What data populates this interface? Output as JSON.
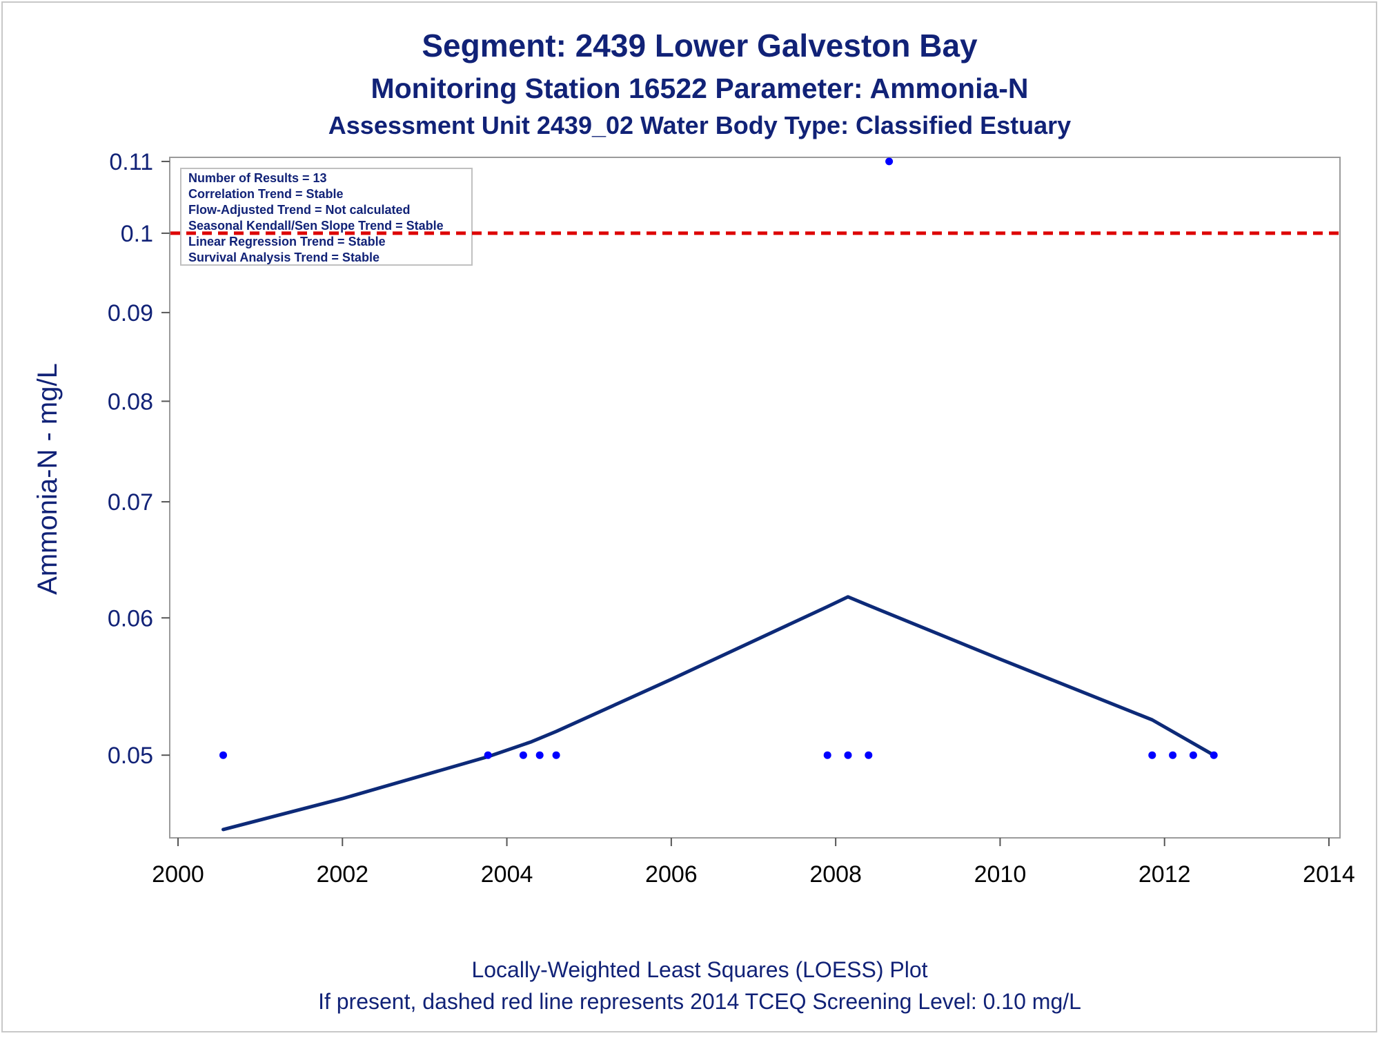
{
  "chart_data": {
    "type": "scatter",
    "title": "Segment: 2439  Lower Galveston Bay",
    "subtitle": "Monitoring Station 16522 Parameter: Ammonia-N",
    "subtitle2": "Assessment Unit 2439_02   Water Body Type: Classified Estuary",
    "xlabel": "",
    "ylabel": "Ammonia-N - mg/L",
    "y_scale": "log",
    "xlim": [
      2000,
      2014
    ],
    "ylim": [
      0.0448,
      0.1106
    ],
    "x_ticks": [
      2000,
      2002,
      2004,
      2006,
      2008,
      2010,
      2012,
      2014
    ],
    "y_ticks": [
      0.05,
      0.06,
      0.07,
      0.08,
      0.09,
      0.1,
      0.11
    ],
    "grid": false,
    "series": [
      {
        "kind": "points",
        "color": "#0000ff",
        "x": [
          2000.55,
          2003.77,
          2004.2,
          2004.4,
          2004.6,
          2007.9,
          2008.15,
          2008.4,
          2008.65,
          2011.85,
          2012.1,
          2012.35,
          2012.6
        ],
        "y": [
          0.05,
          0.05,
          0.05,
          0.05,
          0.05,
          0.05,
          0.05,
          0.05,
          0.11,
          0.05,
          0.05,
          0.05,
          0.05
        ]
      },
      {
        "kind": "loess-line",
        "color": "#0d2a78",
        "x": [
          2000.55,
          2002.0,
          2003.77,
          2004.3,
          2004.6,
          2006.0,
          2007.9,
          2008.15,
          2008.4,
          2010.0,
          2011.85,
          2012.6
        ],
        "y": [
          0.0453,
          0.0472,
          0.0499,
          0.0509,
          0.0516,
          0.0553,
          0.0609,
          0.0617,
          0.061,
          0.0568,
          0.0524,
          0.05
        ]
      }
    ],
    "reference_line": {
      "y": 0.1,
      "color": "#dd0000",
      "style": "dashed"
    },
    "inset_lines": [
      "Number of Results = 13",
      "Correlation Trend = Stable",
      "Flow-Adjusted Trend = Not calculated",
      "Seasonal Kendall/Sen Slope Trend = Stable",
      "Linear Regression Trend = Stable",
      "Survival Analysis Trend = Stable"
    ],
    "inset_placement": "top-left",
    "footnotes": [
      "Locally-Weighted Least Squares (LOESS) Plot",
      "If present, dashed red line represents 2014 TCEQ Screening Level: 0.10 mg/L"
    ]
  }
}
